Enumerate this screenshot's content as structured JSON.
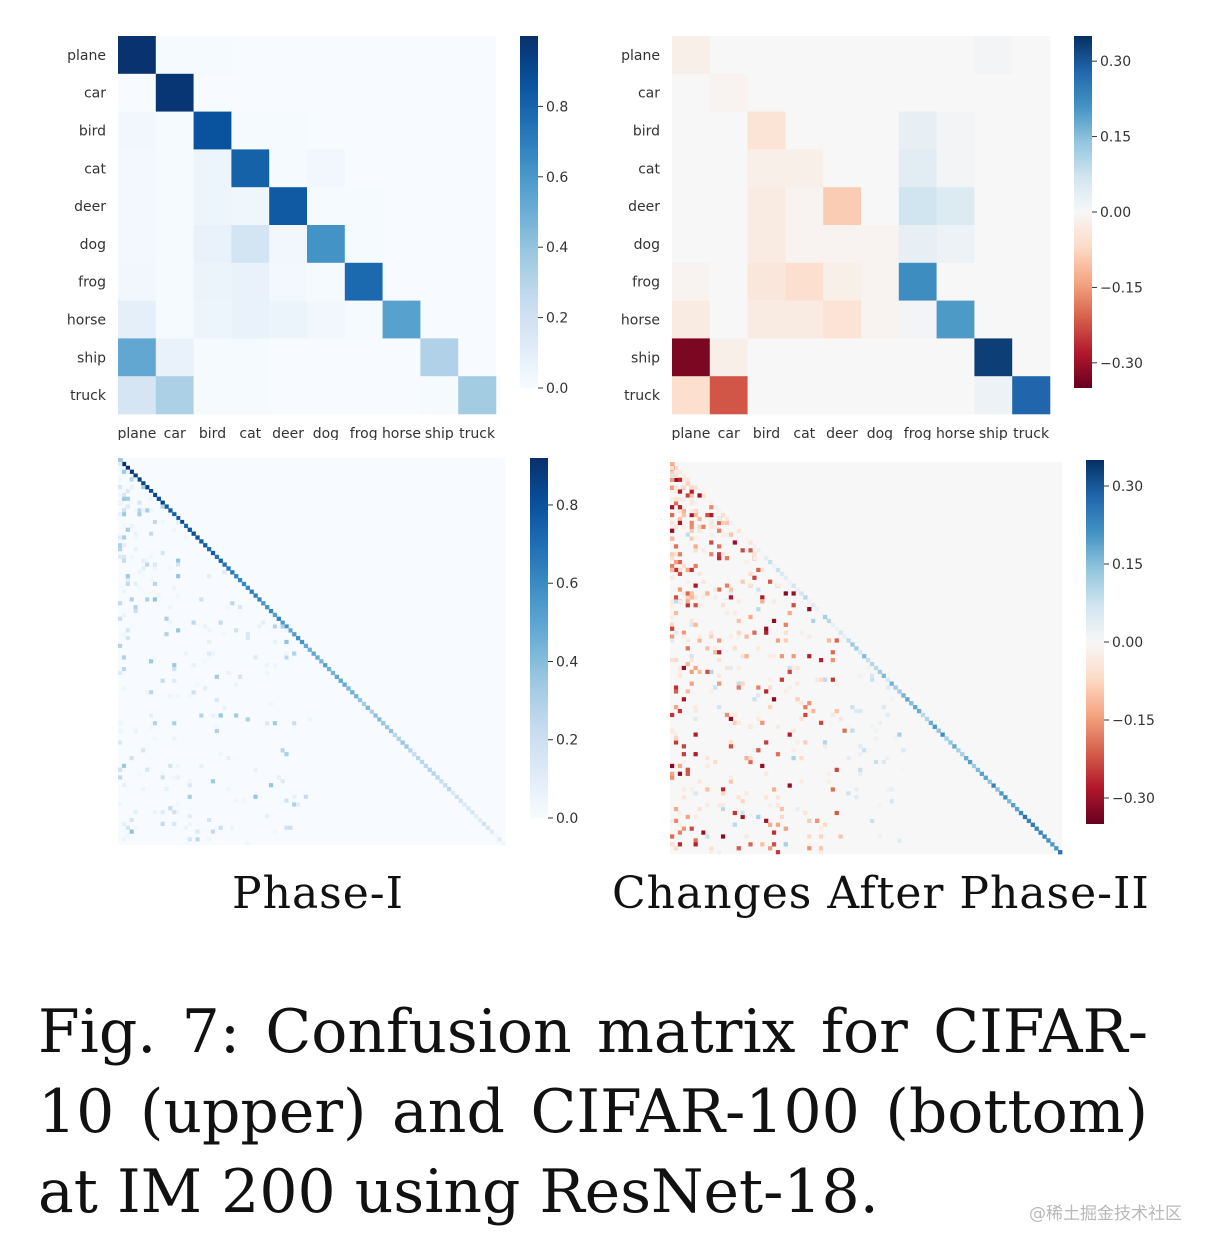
{
  "chart_data": [
    {
      "type": "heatmap",
      "categories": [
        "plane",
        "car",
        "bird",
        "cat",
        "deer",
        "dog",
        "frog",
        "horse",
        "ship",
        "truck"
      ],
      "colorscale": "Blues",
      "colorbar": {
        "range": [
          0,
          1.0
        ],
        "ticks": [
          0.0,
          0.2,
          0.4,
          0.6,
          0.8
        ],
        "tick_labels": [
          "0.0",
          "0.2",
          "0.4",
          "0.6",
          "0.8"
        ]
      },
      "values": [
        [
          0.99,
          0.01,
          0.01,
          0.0,
          0.0,
          0.0,
          0.0,
          0.0,
          0.0,
          0.0
        ],
        [
          0.0,
          0.98,
          0.0,
          0.0,
          0.0,
          0.0,
          0.0,
          0.0,
          0.0,
          0.0
        ],
        [
          0.03,
          0.01,
          0.87,
          0.01,
          0.01,
          0.0,
          0.0,
          0.0,
          0.0,
          0.0
        ],
        [
          0.02,
          0.01,
          0.05,
          0.81,
          0.01,
          0.03,
          0.0,
          0.0,
          0.0,
          0.0
        ],
        [
          0.02,
          0.01,
          0.05,
          0.04,
          0.84,
          0.01,
          0.01,
          0.0,
          0.0,
          0.0
        ],
        [
          0.02,
          0.01,
          0.07,
          0.18,
          0.03,
          0.62,
          0.01,
          0.0,
          0.0,
          0.0
        ],
        [
          0.03,
          0.01,
          0.06,
          0.07,
          0.02,
          0.01,
          0.78,
          0.0,
          0.0,
          0.0
        ],
        [
          0.09,
          0.01,
          0.05,
          0.07,
          0.06,
          0.03,
          0.01,
          0.56,
          0.0,
          0.0
        ],
        [
          0.53,
          0.07,
          0.01,
          0.01,
          0.0,
          0.0,
          0.0,
          0.0,
          0.32,
          0.0
        ],
        [
          0.17,
          0.33,
          0.01,
          0.01,
          0.0,
          0.0,
          0.0,
          0.0,
          0.01,
          0.36
        ]
      ]
    },
    {
      "type": "heatmap",
      "categories": [
        "plane",
        "car",
        "bird",
        "cat",
        "deer",
        "dog",
        "frog",
        "horse",
        "ship",
        "truck"
      ],
      "colorscale": "RdBu",
      "colorbar": {
        "range": [
          -0.35,
          0.35
        ],
        "ticks": [
          0.3,
          0.15,
          0.0,
          -0.15,
          -0.3
        ],
        "tick_labels": [
          "0.30",
          "0.15",
          "0.00",
          "−0.15",
          "−0.30"
        ]
      },
      "values": [
        [
          -0.02,
          0.0,
          0.0,
          0.0,
          0.0,
          0.0,
          0.0,
          0.0,
          0.01,
          0.0
        ],
        [
          0.0,
          -0.01,
          0.0,
          0.0,
          0.0,
          0.0,
          0.0,
          0.0,
          0.0,
          0.0
        ],
        [
          0.0,
          0.0,
          -0.05,
          0.0,
          0.0,
          0.0,
          0.03,
          0.01,
          0.0,
          0.0
        ],
        [
          0.0,
          0.0,
          -0.02,
          -0.02,
          0.0,
          0.0,
          0.04,
          0.01,
          0.0,
          0.0
        ],
        [
          0.0,
          0.0,
          -0.03,
          -0.01,
          -0.09,
          0.0,
          0.07,
          0.05,
          0.0,
          0.0
        ],
        [
          0.0,
          0.0,
          -0.03,
          -0.01,
          -0.01,
          -0.01,
          0.03,
          0.02,
          0.0,
          0.0
        ],
        [
          -0.01,
          0.0,
          -0.04,
          -0.06,
          -0.02,
          -0.01,
          0.22,
          0.0,
          0.0,
          0.0
        ],
        [
          -0.03,
          0.0,
          -0.03,
          -0.03,
          -0.05,
          -0.01,
          0.01,
          0.2,
          0.0,
          0.0
        ],
        [
          -0.33,
          -0.02,
          0.0,
          0.0,
          0.0,
          0.0,
          0.0,
          0.0,
          0.33,
          0.0
        ],
        [
          -0.06,
          -0.22,
          0.0,
          0.0,
          0.0,
          0.0,
          0.0,
          0.0,
          0.02,
          0.28
        ]
      ]
    },
    {
      "type": "heatmap",
      "n_classes": 100,
      "colorscale": "Blues",
      "colorbar": {
        "range": [
          0,
          0.92
        ],
        "ticks": [
          0.0,
          0.2,
          0.4,
          0.6,
          0.8
        ],
        "tick_labels": [
          "0.0",
          "0.2",
          "0.4",
          "0.6",
          "0.8"
        ]
      },
      "diagonal_start": 0.92,
      "diagonal_end": 0.08
    },
    {
      "type": "heatmap",
      "n_classes": 100,
      "colorscale": "RdBu",
      "colorbar": {
        "range": [
          -0.35,
          0.35
        ],
        "ticks": [
          0.3,
          0.15,
          0.0,
          -0.15,
          -0.3
        ],
        "tick_labels": [
          "0.30",
          "0.15",
          "0.00",
          "−0.15",
          "−0.30"
        ]
      },
      "diagonal_start": -0.05,
      "diagonal_end": 0.25
    }
  ],
  "subtitles": {
    "left": "Phase-I",
    "right": "Changes After Phase-II"
  },
  "caption": "Fig. 7: Confusion matrix for CIFAR-10 (upper) and CIFAR-100 (bottom) at IM 200 using ResNet-18.",
  "watermark": "@稀土掘金技术社区"
}
